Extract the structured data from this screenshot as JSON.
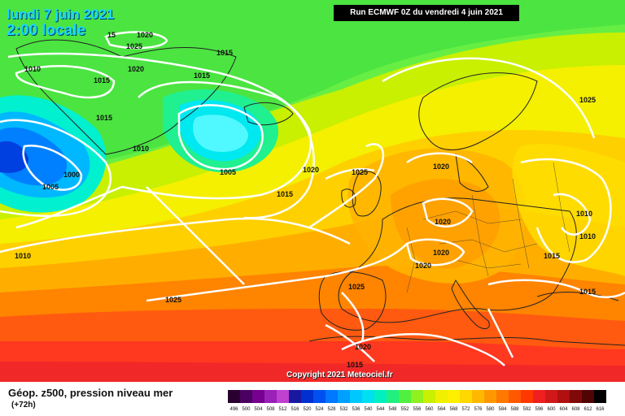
{
  "header": {
    "date_line1": "lundi 7 juin 2021",
    "date_line2": "2:00 locale",
    "run_info": "Run ECMWF 0Z du vendredi 4 juin 2021"
  },
  "map": {
    "isobar_labels": [
      "1020",
      "1025",
      "15",
      "1010",
      "1015",
      "1020",
      "1015",
      "1015",
      "1010",
      "1005",
      "1000",
      "1005",
      "1015",
      "1010",
      "1025",
      "1020",
      "1025",
      "1020",
      "1015",
      "1020",
      "1020",
      "1020",
      "1015",
      "1010",
      "1010",
      "1015",
      "1025",
      "1020",
      "1015",
      "1025"
    ],
    "colors": {
      "land_border": "#222222",
      "isobar": "#ffffff"
    }
  },
  "copyright": "Copyright 2021 Meteociel.fr",
  "legend": {
    "title": "Géop. z500, pression niveau mer",
    "subtitle": "(+72h)",
    "scale_labels": [
      "496",
      "500",
      "504",
      "508",
      "512",
      "516",
      "520",
      "524",
      "528",
      "532",
      "536",
      "540",
      "544",
      "548",
      "552",
      "556",
      "560",
      "564",
      "568",
      "572",
      "576",
      "580",
      "584",
      "588",
      "592",
      "596",
      "600",
      "604",
      "608",
      "612",
      "616"
    ],
    "scale_colors": [
      "#2a0030",
      "#4a0060",
      "#780090",
      "#9a20b8",
      "#c040d0",
      "#1818a0",
      "#0030d0",
      "#0050f0",
      "#0078ff",
      "#00a0ff",
      "#00c8ff",
      "#00e0f0",
      "#00f0c0",
      "#20f080",
      "#50f040",
      "#90f020",
      "#c8f000",
      "#f0f000",
      "#fff000",
      "#ffd800",
      "#ffb800",
      "#ff9800",
      "#ff7800",
      "#ff5800",
      "#ff3800",
      "#f02020",
      "#d01818",
      "#b01010",
      "#800808",
      "#500404",
      "#000000"
    ]
  }
}
